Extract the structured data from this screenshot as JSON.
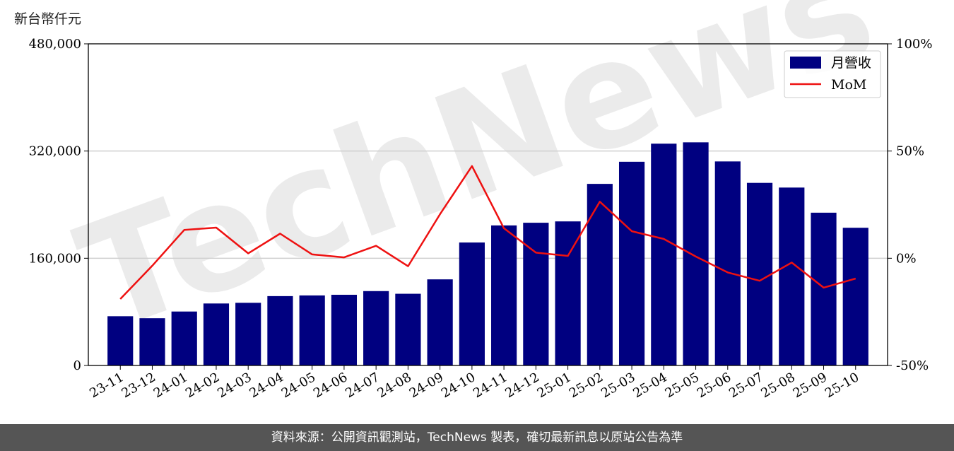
{
  "unit_label": "新台幣仟元",
  "footer_text": "資料來源：公開資訊觀測站，TechNews 製表，確切最新訊息以原站公告為準",
  "watermark": "TechNews",
  "chart_data": {
    "type": "bar",
    "categories": [
      "23-11",
      "23-12",
      "24-01",
      "24-02",
      "24-03",
      "24-04",
      "24-05",
      "24-06",
      "24-07",
      "24-08",
      "24-09",
      "24-10",
      "24-11",
      "24-12",
      "25-01",
      "25-02",
      "25-03",
      "25-04",
      "25-05",
      "25-06",
      "25-07",
      "25-08",
      "25-09",
      "25-10"
    ],
    "series": [
      {
        "name": "月營收",
        "kind": "bar",
        "axis": "left",
        "color": "#000080",
        "values": [
          73500,
          70500,
          80500,
          92500,
          93500,
          103500,
          104500,
          105500,
          111000,
          107000,
          128500,
          183500,
          209000,
          213000,
          215000,
          271000,
          304000,
          331000,
          333000,
          304500,
          272500,
          265500,
          228000,
          205500
        ]
      },
      {
        "name": "MoM",
        "kind": "line",
        "axis": "right",
        "color": "#ee1111",
        "values": [
          -19.0,
          -3.5,
          13.2,
          14.3,
          2.3,
          11.5,
          1.8,
          0.4,
          5.8,
          -3.7,
          20.5,
          43.0,
          14.0,
          2.6,
          1.1,
          26.4,
          12.6,
          9.0,
          0.8,
          -6.6,
          -10.5,
          -2.0,
          -13.7,
          -9.5
        ]
      }
    ],
    "y_left": {
      "min": 0,
      "max": 480000,
      "ticks": [
        0,
        160000,
        320000,
        480000
      ],
      "tick_labels": [
        "0",
        "160,000",
        "320,000",
        "480,000"
      ]
    },
    "y_right": {
      "min": -50,
      "max": 100,
      "ticks": [
        -50,
        0,
        50,
        100
      ],
      "tick_labels": [
        "-50%",
        "0%",
        "50%",
        "100%"
      ]
    },
    "grid": "horizontal",
    "legend_position": "top-right"
  }
}
